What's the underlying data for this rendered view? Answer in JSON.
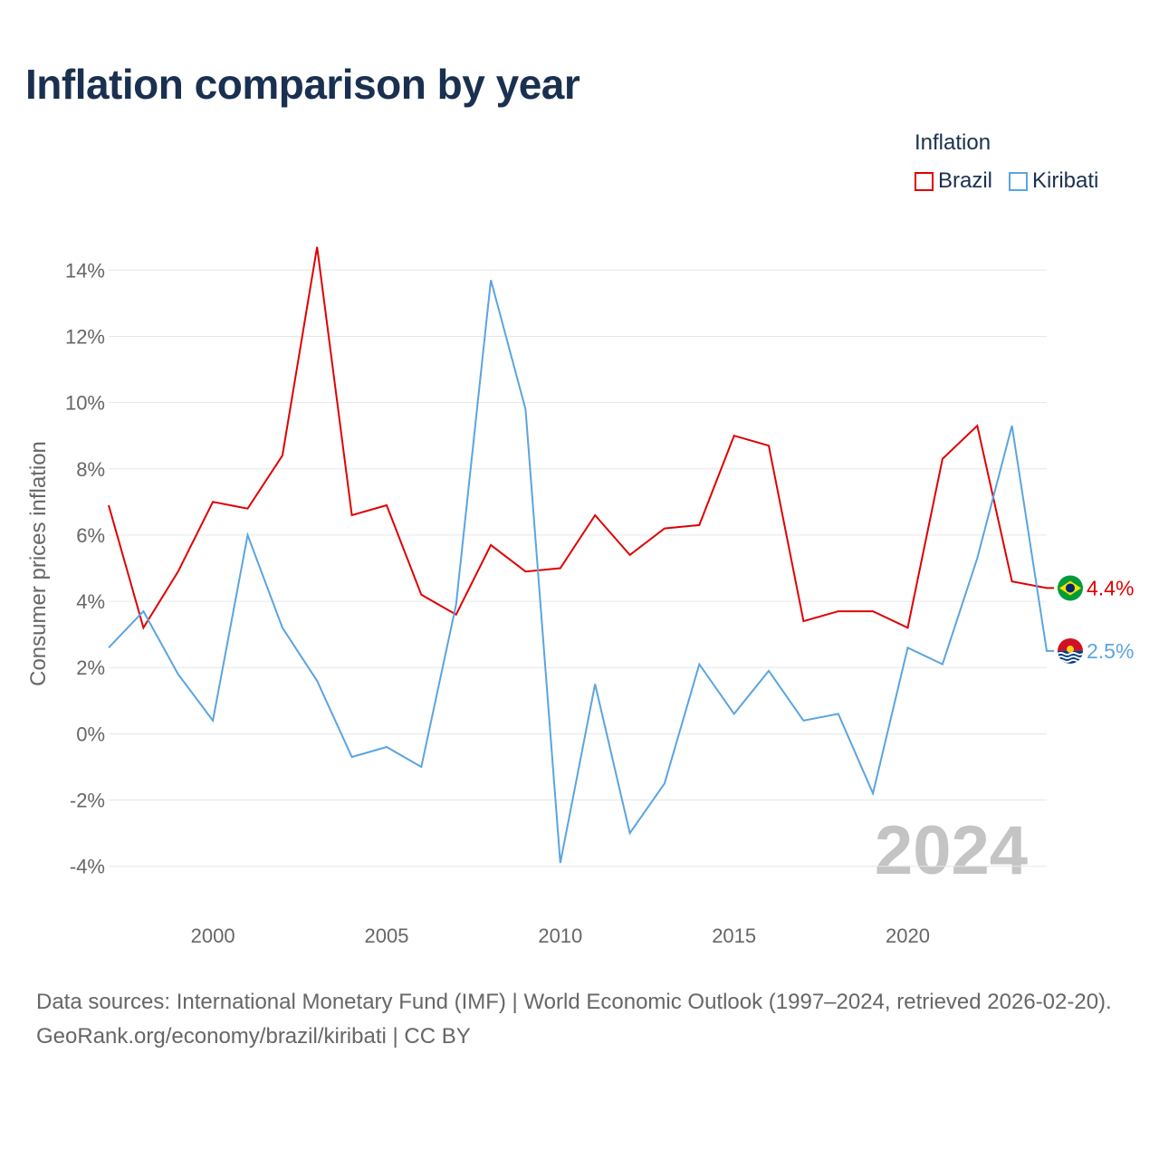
{
  "title": "Inflation comparison by year",
  "legend": {
    "title": "Inflation",
    "items": [
      {
        "label": "Brazil",
        "color": "#e00000"
      },
      {
        "label": "Kiribati",
        "color": "#5ba4e0"
      }
    ]
  },
  "year_watermark": "2024",
  "footer": {
    "sources": "Data sources: International Monetary Fund (IMF) | World Economic Outlook (1997–2024, retrieved 2026-02-20).",
    "credit": "GeoRank.org/economy/brazil/kiribati | CC BY"
  },
  "chart_data": {
    "type": "line",
    "title": "Inflation comparison by year",
    "xlabel": "",
    "ylabel": "Consumer prices inflation",
    "x": [
      1997,
      1998,
      1999,
      2000,
      2001,
      2002,
      2003,
      2004,
      2005,
      2006,
      2007,
      2008,
      2009,
      2010,
      2011,
      2012,
      2013,
      2014,
      2015,
      2016,
      2017,
      2018,
      2019,
      2020,
      2021,
      2022,
      2023,
      2024
    ],
    "xlim": [
      1997,
      2024
    ],
    "ylim": [
      -4.5,
      14.5
    ],
    "x_ticks": [
      2000,
      2005,
      2010,
      2015,
      2020
    ],
    "x_tick_labels": [
      "2000",
      "2005",
      "2010",
      "2015",
      "2020"
    ],
    "y_ticks": [
      -4,
      -2,
      0,
      2,
      4,
      6,
      8,
      10,
      12,
      14
    ],
    "y_tick_labels": [
      "-4%",
      "-2%",
      "0%",
      "2%",
      "4%",
      "6%",
      "8%",
      "10%",
      "12%",
      "14%"
    ],
    "grid": true,
    "legend_position": "top-right",
    "series": [
      {
        "name": "Brazil",
        "color": "#e00000",
        "end_label": "4.4%",
        "values": [
          6.9,
          3.2,
          4.9,
          7.0,
          6.8,
          8.4,
          14.7,
          6.6,
          6.9,
          4.2,
          3.6,
          5.7,
          4.9,
          5.0,
          6.6,
          5.4,
          6.2,
          6.3,
          9.0,
          8.7,
          3.4,
          3.7,
          3.7,
          3.2,
          8.3,
          9.3,
          4.6,
          4.4
        ]
      },
      {
        "name": "Kiribati",
        "color": "#5ba4e0",
        "end_label": "2.5%",
        "values": [
          2.6,
          3.7,
          1.8,
          0.4,
          6.0,
          3.2,
          1.6,
          -0.7,
          -0.4,
          -1.0,
          3.9,
          13.7,
          9.8,
          -3.9,
          1.5,
          -3.0,
          -1.5,
          2.1,
          0.6,
          1.9,
          0.4,
          0.6,
          -1.8,
          2.6,
          2.1,
          5.3,
          9.3,
          2.5
        ]
      }
    ]
  }
}
